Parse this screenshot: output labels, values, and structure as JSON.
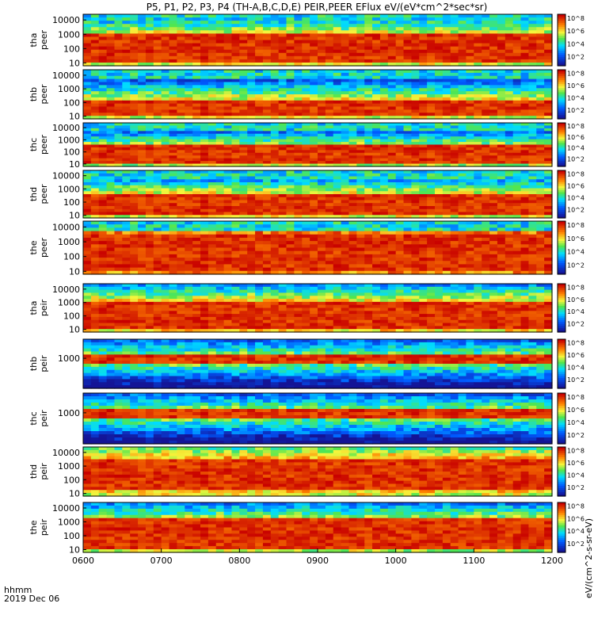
{
  "chart_data": {
    "type": "heatmap",
    "title": "P5, P1, P2, P3, P4 (TH-A,B,C,D,E) PEIR,PEER EFlux eV/(eV*cm^2*sec*sr)",
    "colorbar_unit": "eV/(cm^2-s-sr-eV)",
    "time_label": "hhmm",
    "date_label": "2019 Dec 06",
    "x_ticks": [
      "0600",
      "0700",
      "0800",
      "0900",
      "1000",
      "1100",
      "1200"
    ],
    "colorbar_ticks_peer": [
      "10^2",
      "10^4",
      "10^6",
      "10^8"
    ],
    "colorbar_ticks_peir": [
      "10^2",
      "10^4",
      "10^6",
      "10^8"
    ],
    "panels": [
      {
        "probe": "tha",
        "instrument": "peer",
        "y_ticks": [
          "10",
          "100",
          "1000",
          "10000"
        ],
        "bright_band": [
          1,
          3
        ],
        "base": 0.55
      },
      {
        "probe": "thb",
        "instrument": "peer",
        "y_ticks": [
          "10",
          "100",
          "1000",
          "10000"
        ],
        "bright_band": [
          1,
          2.2
        ],
        "base": 0.55
      },
      {
        "probe": "thc",
        "instrument": "peer",
        "y_ticks": [
          "10",
          "100",
          "1000",
          "10000"
        ],
        "bright_band": [
          1,
          2.5
        ],
        "base": 0.5
      },
      {
        "probe": "thd",
        "instrument": "peer",
        "y_ticks": [
          "10",
          "100",
          "1000",
          "10000"
        ],
        "bright_band": [
          1,
          2.6
        ],
        "base": 0.55
      },
      {
        "probe": "the",
        "instrument": "peer",
        "y_ticks": [
          "10",
          "100",
          "1000",
          "10000"
        ],
        "bright_band": [
          1,
          3.6
        ],
        "base": 0.7
      },
      {
        "probe": "tha",
        "instrument": "peir",
        "y_ticks": [
          "10",
          "100",
          "1000",
          "10000"
        ],
        "bright_band": [
          1,
          3
        ],
        "base": 0.6
      },
      {
        "probe": "thb",
        "instrument": "peir",
        "y_ticks": [
          "1000"
        ],
        "bright_band": [
          2.7,
          3.2
        ],
        "base": 0.45
      },
      {
        "probe": "thc",
        "instrument": "peir",
        "y_ticks": [
          "1000"
        ],
        "bright_band": [
          2.7,
          3.2
        ],
        "base": 0.45
      },
      {
        "probe": "thd",
        "instrument": "peir",
        "y_ticks": [
          "10",
          "100",
          "1000",
          "10000"
        ],
        "bright_band": [
          1.3,
          3.5
        ],
        "base": 0.65
      },
      {
        "probe": "the",
        "instrument": "peir",
        "y_ticks": [
          "10",
          "100",
          "1000",
          "10000"
        ],
        "bright_band": [
          1,
          3.2
        ],
        "base": 0.5
      }
    ]
  }
}
